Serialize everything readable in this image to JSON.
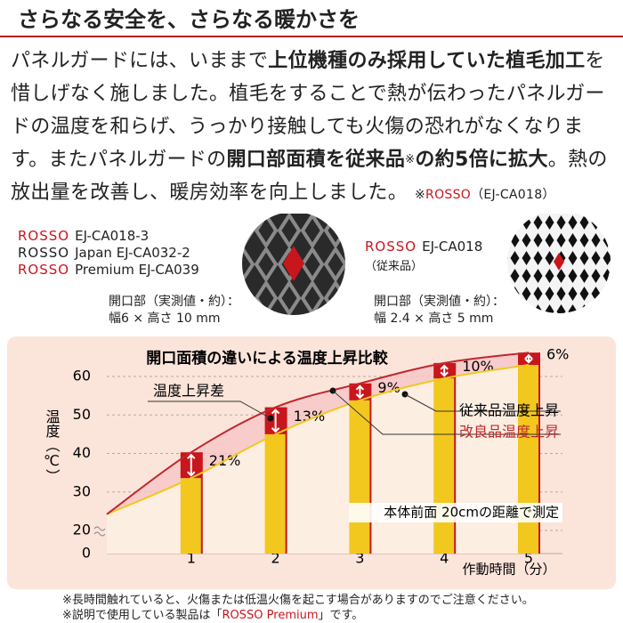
{
  "header": {
    "title": "さらなる安全を、さらなる暖かさを"
  },
  "intro": {
    "runs": [
      {
        "text": "パネルガードには、いままで",
        "style": "normal"
      },
      {
        "text": "上位機種のみ採用していた植毛加工",
        "style": "bold"
      },
      {
        "text": "を惜しげなく施しました。植毛をすることで熱が伝わったパネルガードの温度を和らげ、うっかり接触しても火傷の恐れがなくなります。またパネルガードの",
        "style": "normal"
      },
      {
        "text": "開口部面積を従来品",
        "style": "bold"
      },
      {
        "text": "※",
        "style": "small"
      },
      {
        "text": "の約5倍に拡大",
        "style": "bold"
      },
      {
        "text": "。熱の放出量を改善し、暖房効率を向上しました。",
        "style": "normal"
      }
    ],
    "note": {
      "mark": "※",
      "brand": "ROSSO",
      "model": "（EJ-CA018）"
    }
  },
  "products": {
    "improved": {
      "models": [
        {
          "brand": "ROSSO",
          "name": "EJ-CA018-3",
          "color": "#c8161d"
        },
        {
          "brand": "ROSSO",
          "name": "Japan EJ-CA032-2",
          "color": "#222222"
        },
        {
          "brand": "ROSSO",
          "name": "Premium EJ-CA039",
          "color": "#c8161d"
        }
      ],
      "caption": "開口部（実測値・約）：",
      "size": "幅6 × 高さ 10 mm"
    },
    "conventional": {
      "models": [
        {
          "brand": "ROSSO",
          "name": "EJ-CA018",
          "color": "#c8161d"
        }
      ],
      "tag": "（従来品）",
      "caption": "開口部（実測値・約）：",
      "size": "幅 2.4 × 高さ 5 mm"
    }
  },
  "chart_data": {
    "type": "bar-line",
    "title": "開口面積の違いによる温度上昇比較",
    "x_label": "作動時間（分）",
    "y_label": "温度（℃）",
    "x": [
      0,
      1,
      2,
      3,
      4,
      5
    ],
    "series": [
      {
        "name": "従来品温度上昇",
        "color": "#f2c81e",
        "values": [
          24.2,
          33.6,
          45,
          53.8,
          59.5,
          63
        ]
      },
      {
        "name": "改良品温度上昇",
        "color": "#c0282d",
        "values": [
          24.2,
          40.3,
          52,
          58.2,
          63.5,
          66.2
        ]
      }
    ],
    "differences": {
      "label": "温度上昇差",
      "values": [
        21,
        13,
        9,
        10,
        6
      ],
      "value_labels": [
        "21%",
        "13%",
        "9%",
        "10%",
        "6%"
      ]
    },
    "note": "本体前面 20cmの距離で測定",
    "xlim": [
      0,
      5.4
    ],
    "xticks": [
      1,
      2,
      3,
      4,
      5
    ],
    "ylim": [
      0,
      68
    ],
    "yticks": [
      0,
      20,
      30,
      40,
      50,
      60
    ],
    "axis_break": 20,
    "grid": true
  },
  "footnotes": [
    "※長時間触れていると、火傷または低温火傷を起こす場合がありますのでご注意ください。",
    {
      "before": "※説明で使用している製品は「",
      "brand": "ROSSO Premium",
      "after": "」です。"
    }
  ]
}
